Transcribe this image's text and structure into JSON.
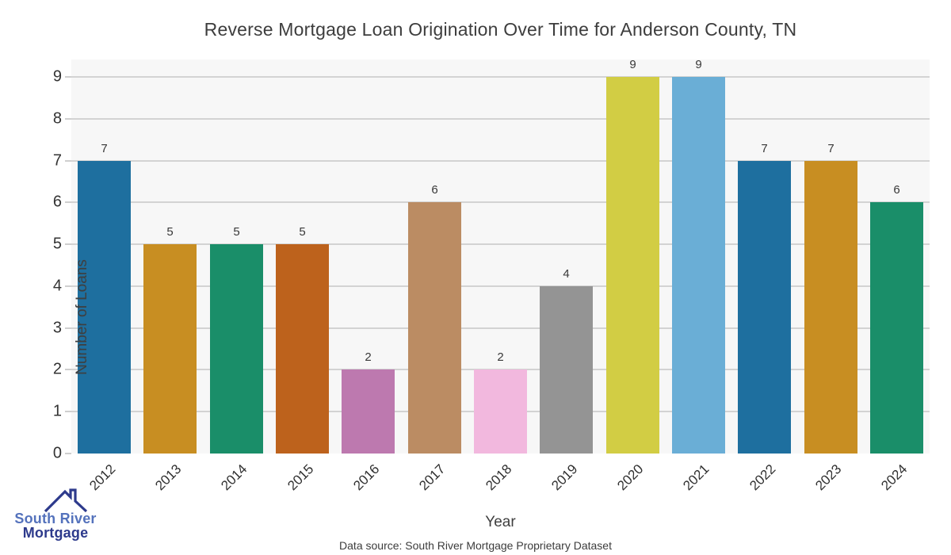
{
  "title": "Reverse Mortgage Loan Origination Over Time for Anderson County, TN",
  "axes": {
    "xlabel": "Year",
    "ylabel": "Number of Loans",
    "y_ticks": [
      0,
      1,
      2,
      3,
      4,
      5,
      6,
      7,
      8,
      9
    ]
  },
  "source_note": "Data source: South River Mortgage Proprietary Dataset",
  "logo": {
    "line1": "South River",
    "line2": "Mortgage",
    "line1_color": "#5472bc",
    "line2_color": "#2d3a8c",
    "roof_color": "#2d3a8c"
  },
  "chart_data": {
    "type": "bar",
    "title": "Reverse Mortgage Loan Origination Over Time for Anderson County, TN",
    "xlabel": "Year",
    "ylabel": "Number of Loans",
    "categories": [
      "2012",
      "2013",
      "2014",
      "2015",
      "2016",
      "2017",
      "2018",
      "2019",
      "2020",
      "2021",
      "2022",
      "2023",
      "2024"
    ],
    "values": [
      7,
      5,
      5,
      5,
      2,
      6,
      2,
      4,
      9,
      9,
      7,
      7,
      6
    ],
    "bar_colors": [
      "#1e6f9f",
      "#c88e22",
      "#1a8e69",
      "#bd621c",
      "#bd79af",
      "#bb8c63",
      "#f2b8de",
      "#949494",
      "#d2cd44",
      "#6aaed6",
      "#1e6f9f",
      "#c88e22",
      "#1a8e69"
    ],
    "ylim": [
      0,
      9.45
    ],
    "grid": true,
    "gridline_values": [
      1,
      2,
      3,
      4,
      5,
      6,
      7,
      8,
      9
    ],
    "plot_background": "#f7f7f7",
    "gridline_color": "#d3d3d3",
    "legend": "none",
    "value_labels_shown": true
  }
}
